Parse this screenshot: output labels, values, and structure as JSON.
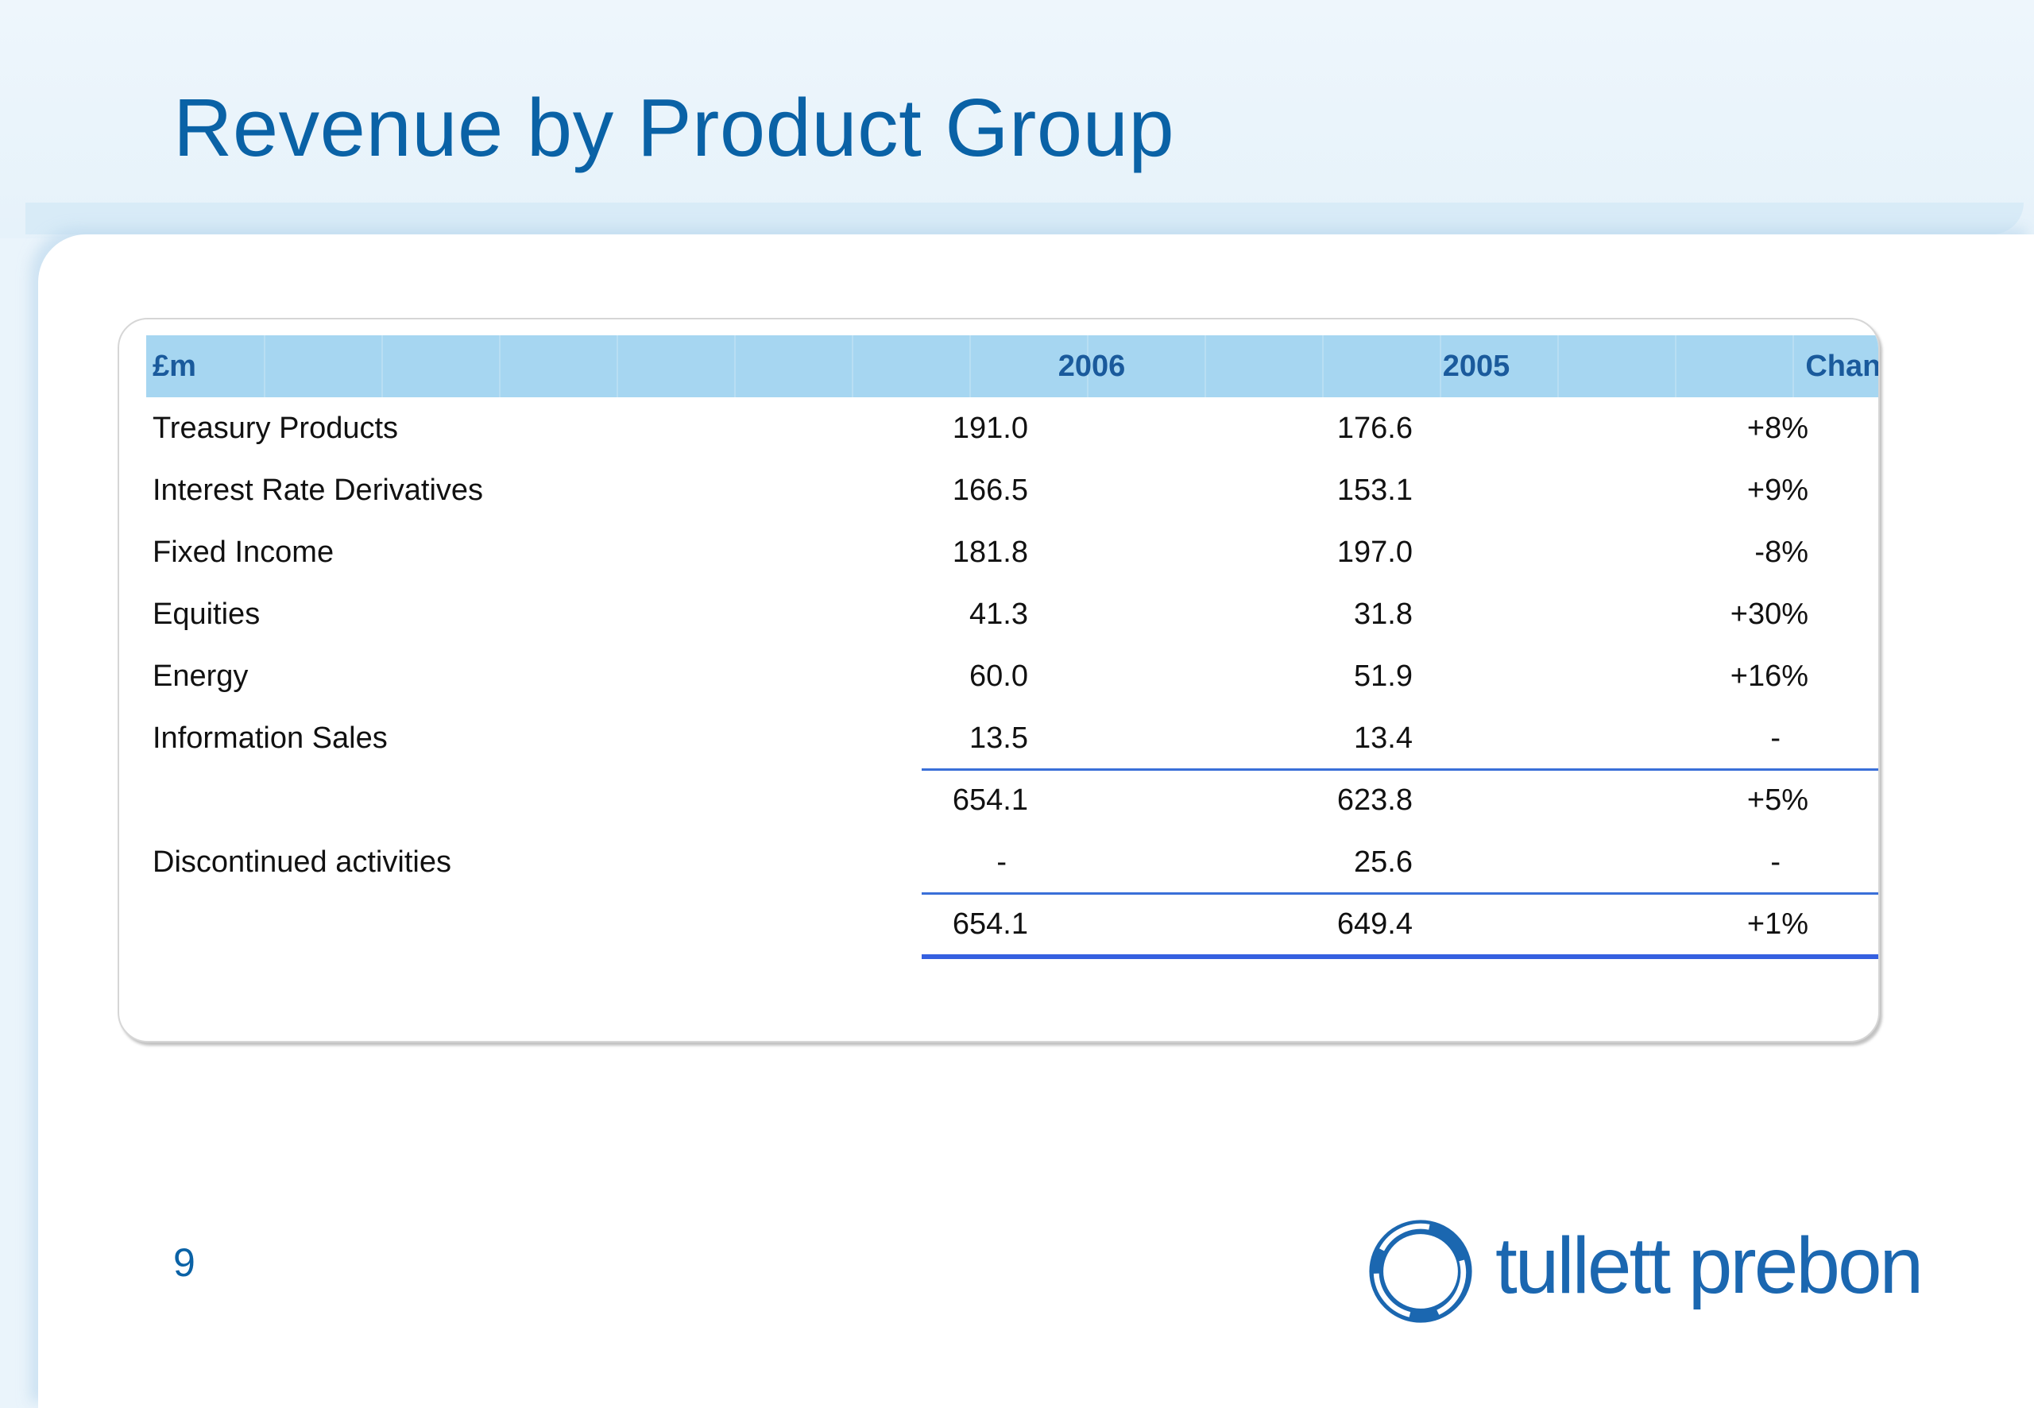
{
  "title": "Revenue by Product Group",
  "page_number": "9",
  "logo_text": "tullett prebon",
  "colors": {
    "title": "#0a62a6",
    "header_fill": "#a6d6f1",
    "header_text": "#1a5a9c",
    "rule": "#3a6fd8"
  },
  "table": {
    "headers": {
      "label": "£m",
      "y2006": "2006",
      "y2005": "2005",
      "change": "Change"
    },
    "rows": [
      {
        "label": "Treasury Products",
        "y2006": "191.0",
        "y2005": "176.6",
        "change": "+8%"
      },
      {
        "label": "Interest Rate Derivatives",
        "y2006": "166.5",
        "y2005": "153.1",
        "change": "+9%"
      },
      {
        "label": "Fixed Income",
        "y2006": "181.8",
        "y2005": "197.0",
        "change": "-8%"
      },
      {
        "label": "Equities",
        "y2006": "41.3",
        "y2005": "31.8",
        "change": "+30%"
      },
      {
        "label": "Energy",
        "y2006": "60.0",
        "y2005": "51.9",
        "change": "+16%"
      },
      {
        "label": "Information Sales",
        "y2006": "13.5",
        "y2005": "13.4",
        "change": "-"
      },
      {
        "label": "",
        "y2006": "654.1",
        "y2005": "623.8",
        "change": "+5%"
      },
      {
        "label": "Discontinued activities",
        "y2006": "-",
        "y2005": "25.6",
        "change": "-"
      },
      {
        "label": "",
        "y2006": "654.1",
        "y2005": "649.4",
        "change": "+1%"
      }
    ]
  }
}
